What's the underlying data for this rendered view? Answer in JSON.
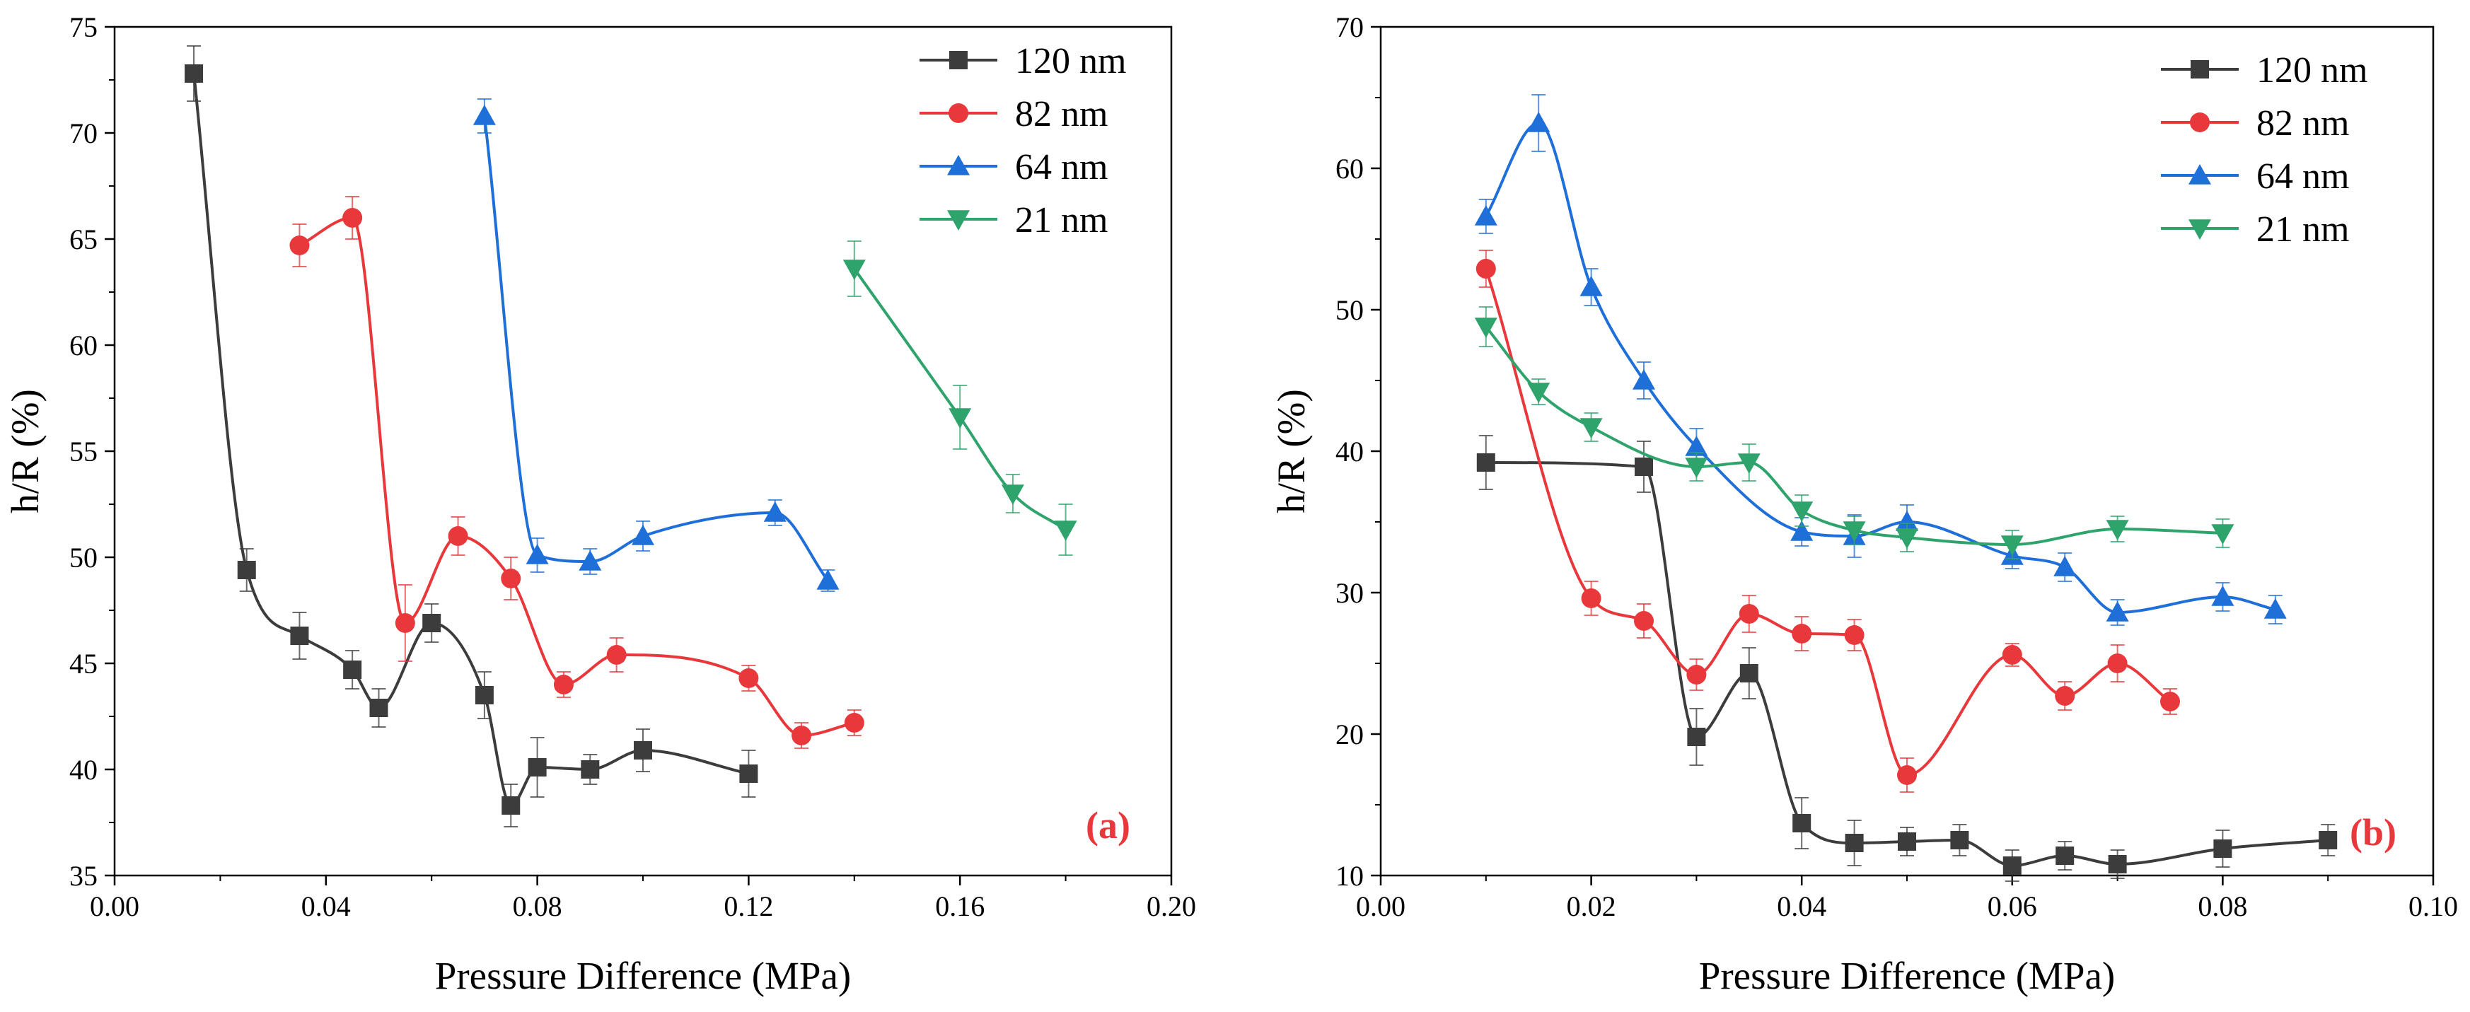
{
  "chart_data": [
    {
      "type": "scatter",
      "id": "a",
      "panel_label": "(a)",
      "panel_label_color": "#e8383b",
      "xlabel": "Pressure Difference (MPa)",
      "ylabel": "h/R (%)",
      "xlim": [
        0.0,
        0.2
      ],
      "ylim": [
        35,
        75
      ],
      "xticks": [
        0.0,
        0.04,
        0.08,
        0.12,
        0.16,
        0.2
      ],
      "xtick_labels": [
        "0.00",
        "0.04",
        "0.08",
        "0.12",
        "0.16",
        "0.20"
      ],
      "yticks": [
        35,
        40,
        45,
        50,
        55,
        60,
        65,
        70,
        75
      ],
      "ytick_labels": [
        "35",
        "40",
        "45",
        "50",
        "55",
        "60",
        "65",
        "70",
        "75"
      ],
      "legend_position": "top-right",
      "series": [
        {
          "name": "120 nm",
          "color": "#3c3c3c",
          "marker": "square",
          "x": [
            0.015,
            0.025,
            0.035,
            0.045,
            0.05,
            0.06,
            0.07,
            0.075,
            0.08,
            0.09,
            0.1,
            0.12
          ],
          "y": [
            72.8,
            49.4,
            46.3,
            44.7,
            42.9,
            46.9,
            43.5,
            38.3,
            40.1,
            40.0,
            40.9,
            39.8
          ],
          "err": [
            1.3,
            1.0,
            1.1,
            0.9,
            0.9,
            0.9,
            1.1,
            1.0,
            1.4,
            0.7,
            1.0,
            1.1
          ]
        },
        {
          "name": "82 nm",
          "color": "#e8383b",
          "marker": "circle",
          "x": [
            0.035,
            0.045,
            0.055,
            0.065,
            0.075,
            0.085,
            0.095,
            0.12,
            0.13,
            0.14
          ],
          "y": [
            64.7,
            66.0,
            46.9,
            51.0,
            49.0,
            44.0,
            45.4,
            44.3,
            41.6,
            42.2
          ],
          "err": [
            1.0,
            1.0,
            1.8,
            0.9,
            1.0,
            0.6,
            0.8,
            0.6,
            0.6,
            0.6
          ]
        },
        {
          "name": "64 nm",
          "color": "#1f6fd8",
          "marker": "triangle-up",
          "x": [
            0.07,
            0.08,
            0.09,
            0.1,
            0.125,
            0.135
          ],
          "y": [
            70.8,
            50.1,
            49.8,
            51.0,
            52.1,
            48.9
          ],
          "err": [
            0.8,
            0.8,
            0.6,
            0.7,
            0.6,
            0.5
          ]
        },
        {
          "name": "21 nm",
          "color": "#2ea36b",
          "marker": "triangle-down",
          "x": [
            0.14,
            0.16,
            0.17,
            0.18
          ],
          "y": [
            63.6,
            56.6,
            53.0,
            51.3
          ],
          "err": [
            1.3,
            1.5,
            0.9,
            1.2
          ]
        }
      ]
    },
    {
      "type": "scatter",
      "id": "b",
      "panel_label": "(b)",
      "panel_label_color": "#e8383b",
      "xlabel": "Pressure Difference (MPa)",
      "ylabel": "h/R (%)",
      "xlim": [
        0.0,
        0.1
      ],
      "ylim": [
        10,
        70
      ],
      "xticks": [
        0.0,
        0.02,
        0.04,
        0.06,
        0.08,
        0.1
      ],
      "xtick_labels": [
        "0.00",
        "0.02",
        "0.04",
        "0.06",
        "0.08",
        "0.10"
      ],
      "yticks": [
        10,
        20,
        30,
        40,
        50,
        60,
        70
      ],
      "ytick_labels": [
        "10",
        "20",
        "30",
        "40",
        "50",
        "60",
        "70"
      ],
      "legend_position": "top-right",
      "series": [
        {
          "name": "120 nm",
          "color": "#3c3c3c",
          "marker": "square",
          "x": [
            0.01,
            0.025,
            0.03,
            0.035,
            0.04,
            0.045,
            0.05,
            0.055,
            0.06,
            0.065,
            0.07,
            0.08,
            0.09
          ],
          "y": [
            39.2,
            38.9,
            19.8,
            24.3,
            13.7,
            12.3,
            12.4,
            12.5,
            10.7,
            11.4,
            10.8,
            11.9,
            12.5
          ],
          "err": [
            1.9,
            1.8,
            2.0,
            1.8,
            1.8,
            1.6,
            1.0,
            1.1,
            1.1,
            1.0,
            1.0,
            1.3,
            1.1
          ]
        },
        {
          "name": "82 nm",
          "color": "#e8383b",
          "marker": "circle",
          "x": [
            0.01,
            0.02,
            0.025,
            0.03,
            0.035,
            0.04,
            0.045,
            0.05,
            0.06,
            0.065,
            0.07,
            0.075
          ],
          "y": [
            52.9,
            29.6,
            28.0,
            24.2,
            28.5,
            27.1,
            27.0,
            17.1,
            25.6,
            22.7,
            25.0,
            22.3
          ],
          "err": [
            1.3,
            1.2,
            1.2,
            1.1,
            1.3,
            1.2,
            1.1,
            1.2,
            0.8,
            1.0,
            1.3,
            0.9
          ]
        },
        {
          "name": "64 nm",
          "color": "#1f6fd8",
          "marker": "triangle-up",
          "x": [
            0.01,
            0.015,
            0.02,
            0.025,
            0.03,
            0.04,
            0.045,
            0.05,
            0.06,
            0.065,
            0.07,
            0.08,
            0.085
          ],
          "y": [
            56.6,
            63.2,
            51.6,
            45.0,
            40.3,
            34.3,
            34.0,
            35.0,
            32.6,
            31.8,
            28.6,
            29.7,
            28.8
          ],
          "err": [
            1.2,
            2.0,
            1.3,
            1.3,
            1.3,
            1.0,
            1.5,
            1.2,
            0.9,
            1.0,
            0.9,
            1.0,
            1.0
          ]
        },
        {
          "name": "21 nm",
          "color": "#2ea36b",
          "marker": "triangle-down",
          "x": [
            0.01,
            0.015,
            0.02,
            0.03,
            0.035,
            0.04,
            0.045,
            0.05,
            0.06,
            0.07,
            0.08
          ],
          "y": [
            48.8,
            44.2,
            41.7,
            38.9,
            39.2,
            35.8,
            34.4,
            33.9,
            33.4,
            34.5,
            34.2
          ],
          "err": [
            1.4,
            0.9,
            1.0,
            1.0,
            1.3,
            1.1,
            1.0,
            1.0,
            1.0,
            0.9,
            1.0
          ]
        }
      ]
    }
  ]
}
